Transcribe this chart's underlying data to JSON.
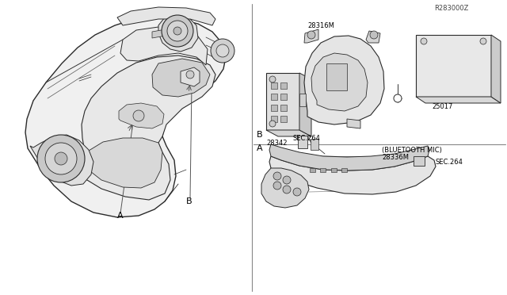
{
  "bg_color": "#f5f5f0",
  "line_color": "#2a2a2a",
  "thin_color": "#444444",
  "label_A_left": "A",
  "label_B_left": "B",
  "label_A_right": "A",
  "label_B_right": "B",
  "part_sec264_1": "SEC.264",
  "part_sec264_2": "SEC.264",
  "part_28336M": "28336M",
  "part_28336M_desc": "(BLUETOOTH MIC)",
  "part_28342": "28342",
  "part_28316M": "28316M",
  "part_25017": "25017",
  "ref_code": "R283000Z",
  "font_size_label": 7,
  "font_size_part": 6,
  "font_size_ref": 6
}
